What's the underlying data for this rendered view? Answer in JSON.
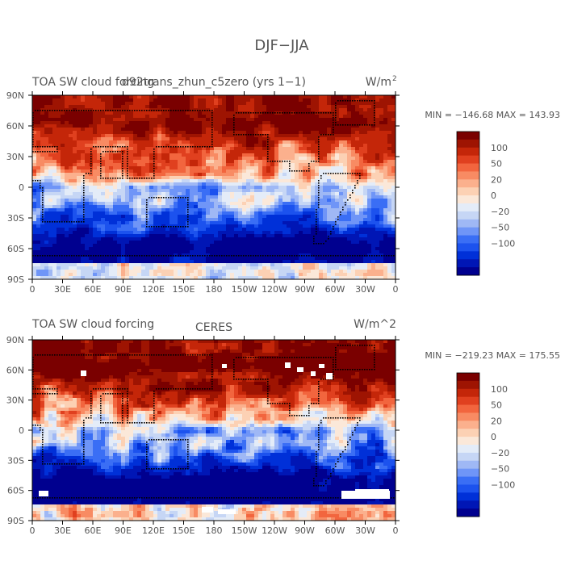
{
  "title": "DJF−JJA",
  "chart_data": [
    {
      "type": "heatmap",
      "title_left": "TOA SW cloud forcing",
      "title_center": "d92trans_zhun_c5zero (yrs 1−1)",
      "units": "W/m",
      "units_sup": "2",
      "stats": "MIN = −146.68  MAX = 143.93",
      "min": -146.68,
      "max": 143.93,
      "x_tick_labels": [
        "0",
        "30E",
        "60E",
        "90E",
        "120E",
        "150E",
        "180",
        "150W",
        "120W",
        "90W",
        "60W",
        "30W",
        "0"
      ],
      "y_tick_labels": [
        "90N",
        "60N",
        "30N",
        "0",
        "30S",
        "60S",
        "90S"
      ],
      "lon_range": [
        0,
        360
      ],
      "lat_range": [
        -90,
        90
      ],
      "colorbar": {
        "levels": [
          -120,
          -100,
          -80,
          -60,
          -50,
          -40,
          -30,
          -20,
          -10,
          0,
          10,
          20,
          30,
          40,
          50,
          60,
          80,
          100,
          120
        ],
        "labels": [
          "100",
          "50",
          "20",
          "0",
          "−20",
          "−50",
          "−100"
        ]
      }
    },
    {
      "type": "heatmap",
      "title_left": "TOA SW cloud forcing",
      "title_center": "CERES",
      "units": "W/m^2",
      "units_sup": "",
      "stats": "MIN = −219.23  MAX = 175.55",
      "min": -219.23,
      "max": 175.55,
      "x_tick_labels": [
        "0",
        "30E",
        "60E",
        "90E",
        "120E",
        "150E",
        "180",
        "150W",
        "120W",
        "90W",
        "60W",
        "30W",
        "0"
      ],
      "y_tick_labels": [
        "90N",
        "60N",
        "30N",
        "0",
        "30S",
        "60S",
        "90S"
      ],
      "lon_range": [
        0,
        360
      ],
      "lat_range": [
        -90,
        90
      ],
      "colorbar": {
        "levels": [
          -120,
          -100,
          -80,
          -60,
          -50,
          -40,
          -30,
          -20,
          -10,
          0,
          10,
          20,
          30,
          40,
          50,
          60,
          80,
          100,
          120
        ],
        "labels": [
          "100",
          "50",
          "20",
          "0",
          "−20",
          "−50",
          "−100"
        ]
      }
    }
  ],
  "colors": {
    "palette": [
      "#00008f",
      "#0016b5",
      "#0030d8",
      "#1c52ee",
      "#3a6ef5",
      "#6f95f7",
      "#9fb8f5",
      "#c6d6f5",
      "#e4ecf8",
      "#fbe8d9",
      "#fcd1b4",
      "#fbb08d",
      "#f88b63",
      "#f2653e",
      "#e0401f",
      "#c42609",
      "#9e1402",
      "#7a0000"
    ],
    "land": "#000000",
    "missing": "#ffffff"
  }
}
